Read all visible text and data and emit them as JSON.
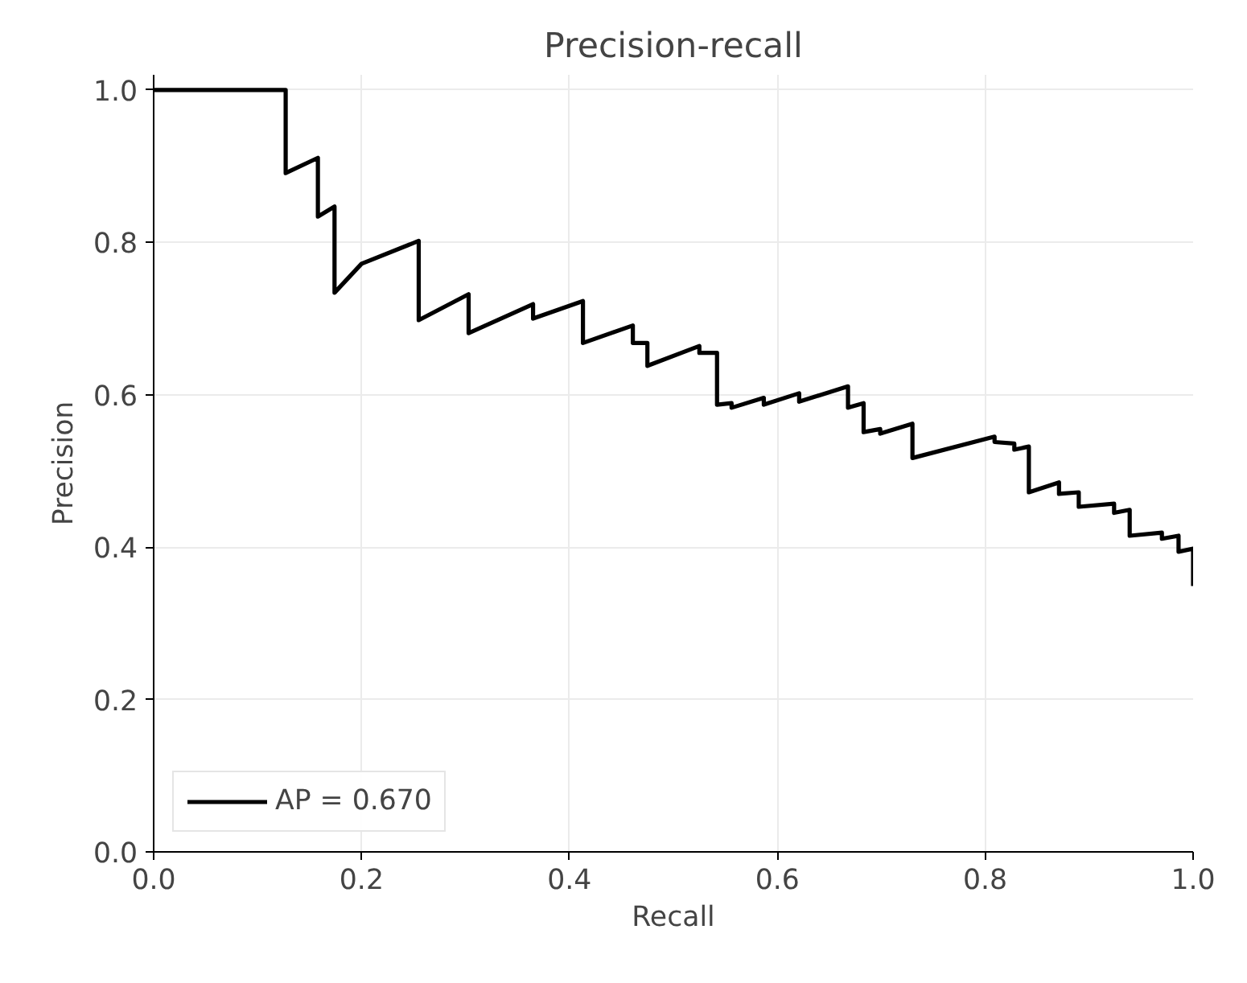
{
  "chart_data": {
    "type": "line",
    "title": "Precision-recall",
    "xlabel": "Recall",
    "ylabel": "Precision",
    "xlim": [
      0,
      1
    ],
    "ylim": [
      0,
      1.02
    ],
    "xticks": [
      {
        "value": 0,
        "label": "0.0"
      },
      {
        "value": 0.2,
        "label": "0.2"
      },
      {
        "value": 0.4,
        "label": "0.4"
      },
      {
        "value": 0.6,
        "label": "0.6"
      },
      {
        "value": 0.8,
        "label": "0.8"
      },
      {
        "value": 1,
        "label": "1.0"
      }
    ],
    "yticks": [
      {
        "value": 0,
        "label": "0.0"
      },
      {
        "value": 0.2,
        "label": "0.2"
      },
      {
        "value": 0.4,
        "label": "0.4"
      },
      {
        "value": 0.6,
        "label": "0.6"
      },
      {
        "value": 0.8,
        "label": "0.8"
      },
      {
        "value": 1,
        "label": "1.0"
      }
    ],
    "grid": true,
    "legend": "bottom left",
    "line_style": "solid",
    "series": [
      {
        "name": "AP = 0.670",
        "color": "#000000",
        "x": [
          0,
          0.127,
          0.127,
          0.158,
          0.158,
          0.174,
          0.174,
          0.2,
          0.255,
          0.255,
          0.303,
          0.303,
          0.365,
          0.365,
          0.413,
          0.413,
          0.461,
          0.461,
          0.475,
          0.475,
          0.525,
          0.525,
          0.542,
          0.542,
          0.556,
          0.556,
          0.587,
          0.587,
          0.621,
          0.621,
          0.668,
          0.668,
          0.683,
          0.683,
          0.699,
          0.699,
          0.73,
          0.73,
          0.809,
          0.809,
          0.828,
          0.828,
          0.842,
          0.842,
          0.871,
          0.871,
          0.89,
          0.89,
          0.924,
          0.924,
          0.939,
          0.939,
          0.97,
          0.97,
          0.986,
          0.986,
          1.0,
          1.0
        ],
        "values": [
          1.0,
          1.0,
          0.891,
          0.911,
          0.834,
          0.847,
          0.734,
          0.772,
          0.802,
          0.698,
          0.732,
          0.681,
          0.719,
          0.7,
          0.723,
          0.668,
          0.691,
          0.668,
          0.668,
          0.638,
          0.664,
          0.655,
          0.655,
          0.587,
          0.589,
          0.583,
          0.596,
          0.587,
          0.602,
          0.591,
          0.611,
          0.583,
          0.589,
          0.551,
          0.555,
          0.549,
          0.562,
          0.517,
          0.545,
          0.538,
          0.536,
          0.528,
          0.532,
          0.472,
          0.485,
          0.47,
          0.472,
          0.453,
          0.457,
          0.445,
          0.449,
          0.415,
          0.419,
          0.411,
          0.415,
          0.394,
          0.398,
          0.349
        ]
      }
    ]
  }
}
